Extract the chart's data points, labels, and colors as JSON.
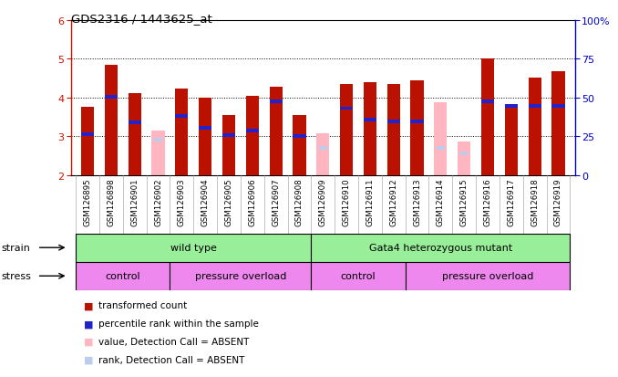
{
  "title": "GDS2316 / 1443625_at",
  "samples": [
    "GSM126895",
    "GSM126898",
    "GSM126901",
    "GSM126902",
    "GSM126903",
    "GSM126904",
    "GSM126905",
    "GSM126906",
    "GSM126907",
    "GSM126908",
    "GSM126909",
    "GSM126910",
    "GSM126911",
    "GSM126912",
    "GSM126913",
    "GSM126914",
    "GSM126915",
    "GSM126916",
    "GSM126917",
    "GSM126918",
    "GSM126919"
  ],
  "red_bar_top": [
    3.76,
    4.84,
    4.1,
    0.0,
    4.22,
    4.0,
    3.55,
    4.05,
    4.28,
    3.55,
    0.0,
    4.35,
    4.4,
    4.35,
    4.45,
    0.0,
    0.0,
    5.0,
    3.77,
    4.52,
    4.68
  ],
  "pink_bar_top": [
    3.76,
    0.0,
    0.0,
    3.15,
    0.0,
    0.0,
    0.0,
    0.0,
    0.0,
    0.0,
    3.07,
    0.0,
    0.0,
    0.0,
    0.0,
    3.88,
    2.85,
    0.0,
    0.0,
    0.0,
    0.0
  ],
  "blue_marker": [
    3.04,
    4.02,
    3.35,
    0.0,
    3.52,
    3.21,
    3.02,
    3.15,
    3.9,
    3.01,
    0.0,
    3.72,
    3.42,
    3.38,
    3.38,
    0.0,
    0.0,
    3.9,
    3.78,
    3.78,
    3.78
  ],
  "light_blue_marker": [
    0.0,
    0.0,
    0.0,
    2.9,
    0.0,
    0.0,
    0.0,
    0.0,
    0.0,
    0.0,
    2.7,
    0.0,
    0.0,
    0.0,
    0.0,
    2.7,
    2.55,
    0.0,
    0.0,
    0.0,
    0.0
  ],
  "ylim_left": [
    2,
    6
  ],
  "ylim_right": [
    0,
    100
  ],
  "baseline": 2,
  "bar_width": 0.55,
  "red_color": "#BB1100",
  "pink_color": "#FFB6C1",
  "blue_color": "#2222CC",
  "light_blue_color": "#BBCCEE",
  "bg_color": "#FFFFFF",
  "left_axis_color": "#CC1100",
  "right_axis_color": "#0000CC",
  "tick_bg_color": "#C8C8C8",
  "strain_green": "#99EE99",
  "stress_pink": "#EE88EE",
  "strain_groups": [
    {
      "label": "wild type",
      "start": 0,
      "end": 9
    },
    {
      "label": "Gata4 heterozygous mutant",
      "start": 10,
      "end": 20
    }
  ],
  "stress_groups": [
    {
      "label": "control",
      "start": 0,
      "end": 3
    },
    {
      "label": "pressure overload",
      "start": 4,
      "end": 9
    },
    {
      "label": "control",
      "start": 10,
      "end": 13
    },
    {
      "label": "pressure overload",
      "start": 14,
      "end": 20
    }
  ],
  "legend_items": [
    {
      "color": "#BB1100",
      "label": "transformed count"
    },
    {
      "color": "#2222CC",
      "label": "percentile rank within the sample"
    },
    {
      "color": "#FFB6C1",
      "label": "value, Detection Call = ABSENT"
    },
    {
      "color": "#BBCCEE",
      "label": "rank, Detection Call = ABSENT"
    }
  ]
}
